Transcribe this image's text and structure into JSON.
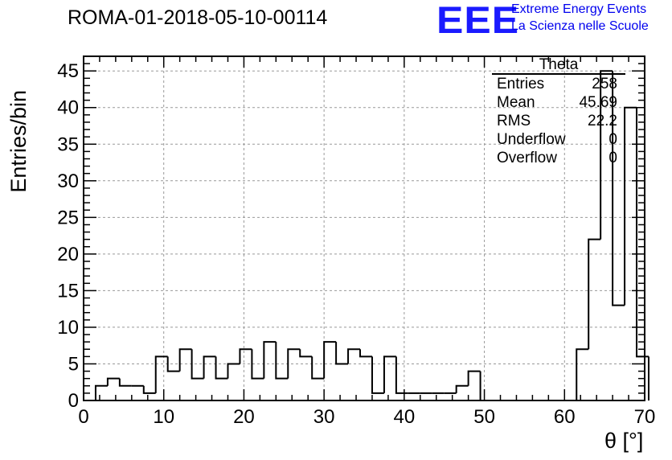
{
  "title": "ROMA-01-2018-05-10-00114",
  "logo": {
    "mark": "EEE",
    "line1": "Extreme Energy Events",
    "line2": "La Scienza nelle Scuole",
    "color": "#1a1aff"
  },
  "stats": {
    "title": "Theta",
    "rows": [
      {
        "label": "Entries",
        "value": "258"
      },
      {
        "label": "Mean",
        "value": "45.69"
      },
      {
        "label": "RMS",
        "value": "22.2"
      },
      {
        "label": "Underflow",
        "value": "0"
      },
      {
        "label": "Overflow",
        "value": "0"
      }
    ]
  },
  "chart_data": {
    "type": "bar",
    "title": "ROMA-01-2018-05-10-00114",
    "xlabel": "θ [°]",
    "ylabel": "Entries/bin",
    "xlim": [
      0,
      70
    ],
    "ylim": [
      0,
      47
    ],
    "xticks": [
      0,
      10,
      20,
      30,
      40,
      50,
      60,
      70
    ],
    "yticks": [
      0,
      5,
      10,
      15,
      20,
      25,
      30,
      35,
      40,
      45
    ],
    "grid": true,
    "histogram": true,
    "bin_width": 1.5,
    "bin_start": 0,
    "values": [
      0,
      2,
      3,
      2,
      2,
      1,
      6,
      4,
      7,
      3,
      6,
      3,
      5,
      7,
      3,
      8,
      3,
      7,
      6,
      3,
      8,
      5,
      7,
      6,
      1,
      6,
      1,
      1,
      1,
      1,
      1,
      2,
      4,
      0,
      0,
      0,
      0,
      0,
      0,
      0,
      0,
      7,
      22,
      45,
      13,
      40,
      6
    ]
  }
}
